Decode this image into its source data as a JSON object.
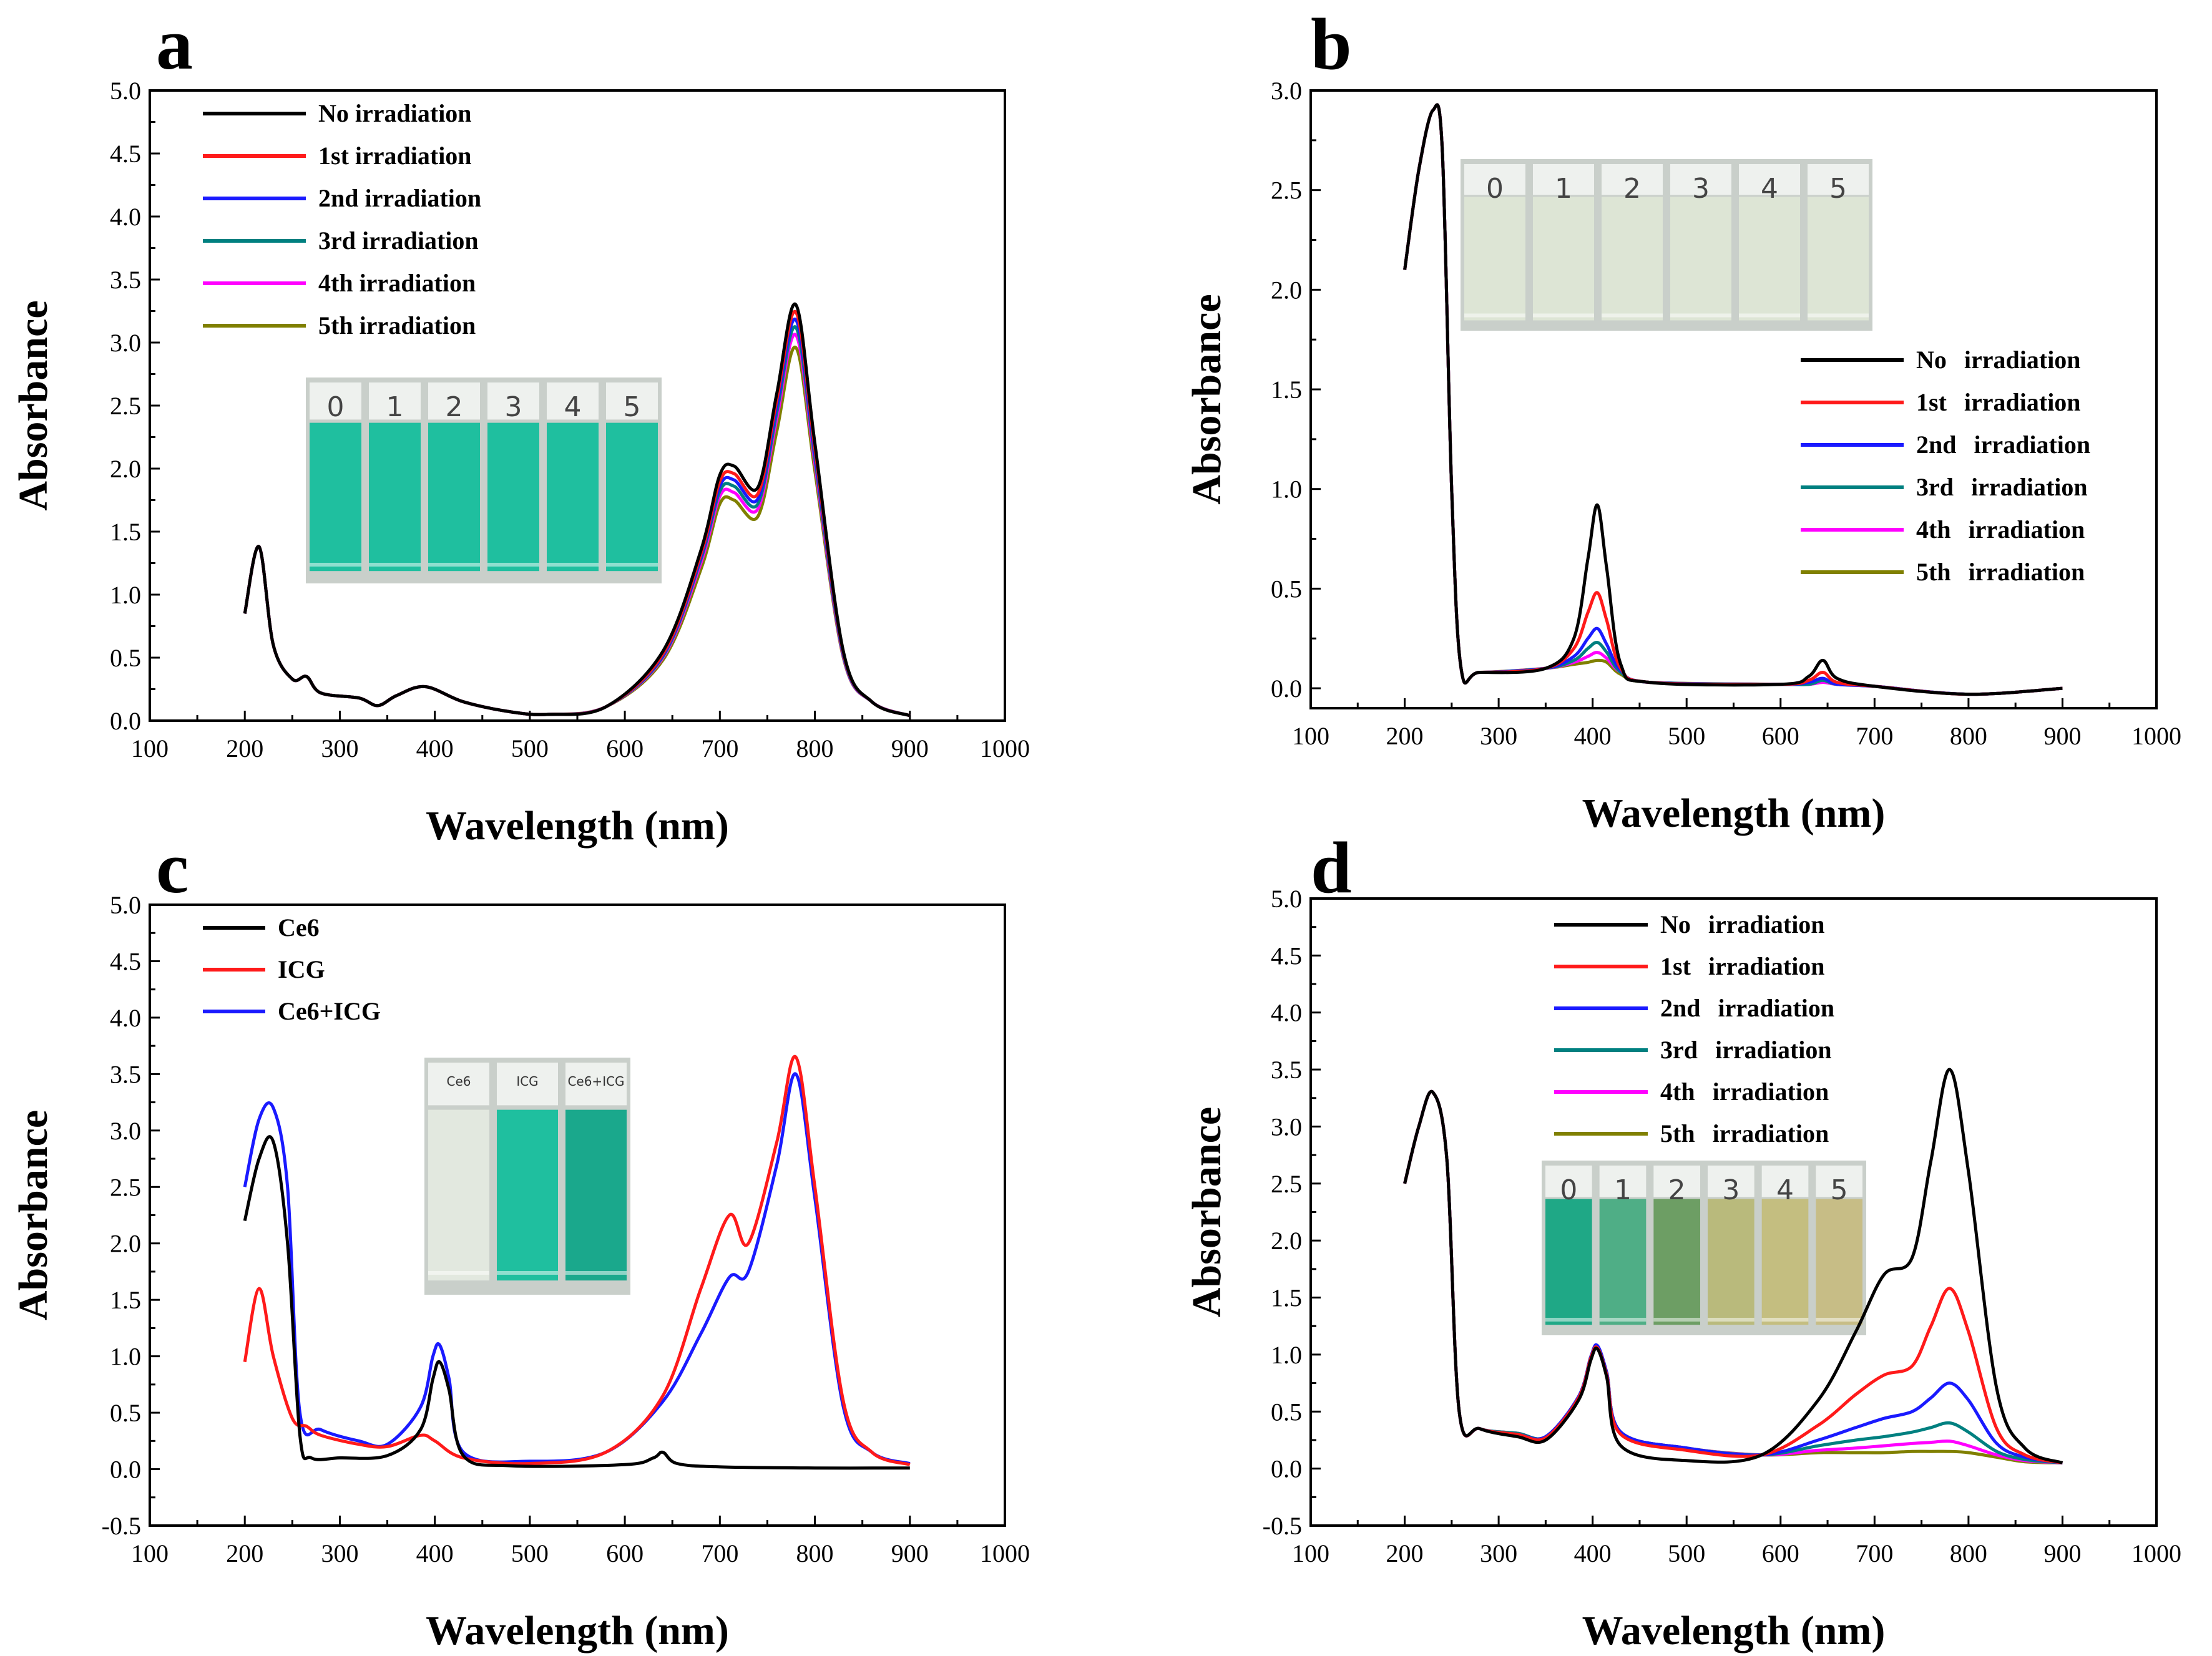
{
  "colors": {
    "black": "#000000",
    "red": "#ff1a1a",
    "blue": "#1a1aff",
    "teal": "#008080",
    "magenta": "#ff00ff",
    "olive": "#808000"
  },
  "chart_data": [
    {
      "type": "line",
      "panel": "a",
      "xlabel": "Wavelength (nm)",
      "ylabel": "Absorbance",
      "xlim": [
        100,
        1000
      ],
      "ylim": [
        0.0,
        5.0
      ],
      "xticks": [
        "100",
        "200",
        "300",
        "400",
        "500",
        "600",
        "700",
        "800",
        "900",
        "1000"
      ],
      "yticks": [
        "0.0",
        "0.5",
        "1.0",
        "1.5",
        "2.0",
        "2.5",
        "3.0",
        "3.5",
        "4.0",
        "4.5",
        "5.0"
      ],
      "legend_position": "top-left",
      "x": [
        200,
        215,
        230,
        250,
        265,
        280,
        320,
        340,
        360,
        390,
        430,
        480,
        520,
        580,
        640,
        680,
        700,
        715,
        740,
        760,
        780,
        800,
        830,
        860,
        900
      ],
      "series": [
        {
          "name": "No irradiation",
          "color": "#000000",
          "values": [
            0.85,
            1.38,
            0.6,
            0.33,
            0.35,
            0.22,
            0.18,
            0.12,
            0.2,
            0.27,
            0.15,
            0.07,
            0.05,
            0.11,
            0.55,
            1.35,
            1.95,
            2.02,
            1.85,
            2.6,
            3.3,
            2.2,
            0.55,
            0.15,
            0.04
          ]
        },
        {
          "name": "1st irradiation",
          "color": "#ff1a1a",
          "values": [
            0.85,
            1.38,
            0.6,
            0.33,
            0.35,
            0.22,
            0.18,
            0.12,
            0.2,
            0.27,
            0.15,
            0.07,
            0.05,
            0.11,
            0.53,
            1.32,
            1.9,
            1.96,
            1.8,
            2.55,
            3.24,
            2.16,
            0.54,
            0.15,
            0.04
          ]
        },
        {
          "name": "2nd irradiation",
          "color": "#1a1aff",
          "values": [
            0.85,
            1.38,
            0.6,
            0.33,
            0.35,
            0.22,
            0.18,
            0.12,
            0.2,
            0.27,
            0.15,
            0.07,
            0.05,
            0.11,
            0.52,
            1.3,
            1.86,
            1.91,
            1.76,
            2.5,
            3.18,
            2.12,
            0.53,
            0.15,
            0.04
          ]
        },
        {
          "name": "3rd irradiation",
          "color": "#008080",
          "values": [
            0.85,
            1.38,
            0.6,
            0.33,
            0.35,
            0.22,
            0.18,
            0.12,
            0.2,
            0.27,
            0.15,
            0.07,
            0.05,
            0.11,
            0.51,
            1.28,
            1.82,
            1.86,
            1.72,
            2.45,
            3.12,
            2.08,
            0.52,
            0.15,
            0.04
          ]
        },
        {
          "name": "4th irradiation",
          "color": "#ff00ff",
          "values": [
            0.85,
            1.38,
            0.6,
            0.33,
            0.35,
            0.22,
            0.18,
            0.12,
            0.2,
            0.27,
            0.15,
            0.07,
            0.05,
            0.11,
            0.5,
            1.25,
            1.78,
            1.81,
            1.68,
            2.4,
            3.06,
            2.04,
            0.51,
            0.15,
            0.04
          ]
        },
        {
          "name": "5th irradiation",
          "color": "#808000",
          "values": [
            0.85,
            1.38,
            0.6,
            0.33,
            0.35,
            0.22,
            0.18,
            0.12,
            0.2,
            0.27,
            0.15,
            0.07,
            0.05,
            0.11,
            0.48,
            1.2,
            1.72,
            1.75,
            1.62,
            2.3,
            2.96,
            1.98,
            0.5,
            0.15,
            0.04
          ]
        }
      ],
      "inset": {
        "labels": [
          "0",
          "1",
          "2",
          "3",
          "4",
          "5"
        ],
        "liquid_colors": [
          "#1fbf9f",
          "#1fbf9f",
          "#1fbf9f",
          "#1fbf9f",
          "#1fbf9f",
          "#1fbf9f"
        ]
      }
    },
    {
      "type": "line",
      "panel": "b",
      "xlabel": "Wavelength (nm)",
      "ylabel": "Absorbance",
      "xlim": [
        100,
        1000
      ],
      "ylim": [
        -0.1,
        3.0
      ],
      "xticks": [
        "100",
        "200",
        "300",
        "400",
        "500",
        "600",
        "700",
        "800",
        "900",
        "1000"
      ],
      "yticks": [
        "0.0",
        "0.5",
        "1.0",
        "1.5",
        "2.0",
        "2.5",
        "3.0"
      ],
      "legend_position": "right",
      "x": [
        200,
        215,
        230,
        240,
        250,
        260,
        280,
        350,
        380,
        395,
        405,
        415,
        430,
        460,
        600,
        630,
        645,
        660,
        700,
        800,
        900
      ],
      "series": [
        {
          "name": "No irradiation",
          "color": "#000000",
          "values": [
            2.1,
            2.6,
            2.9,
            2.7,
            1.0,
            0.1,
            0.08,
            0.1,
            0.25,
            0.65,
            0.92,
            0.6,
            0.12,
            0.03,
            0.02,
            0.06,
            0.14,
            0.05,
            0.01,
            -0.03,
            0.0
          ]
        },
        {
          "name": "1st irradiation",
          "color": "#ff1a1a",
          "values": [
            2.1,
            2.6,
            2.9,
            2.7,
            1.0,
            0.1,
            0.08,
            0.1,
            0.2,
            0.38,
            0.48,
            0.34,
            0.1,
            0.03,
            0.02,
            0.04,
            0.08,
            0.03,
            0.01,
            -0.03,
            0.0
          ]
        },
        {
          "name": "2nd irradiation",
          "color": "#1a1aff",
          "values": [
            2.1,
            2.6,
            2.9,
            2.7,
            1.0,
            0.1,
            0.08,
            0.1,
            0.16,
            0.25,
            0.3,
            0.22,
            0.09,
            0.03,
            0.02,
            0.03,
            0.05,
            0.02,
            0.01,
            -0.03,
            0.0
          ]
        },
        {
          "name": "3rd irradiation",
          "color": "#008080",
          "values": [
            2.1,
            2.6,
            2.9,
            2.7,
            1.0,
            0.1,
            0.08,
            0.1,
            0.14,
            0.2,
            0.23,
            0.18,
            0.08,
            0.03,
            0.02,
            0.02,
            0.04,
            0.02,
            0.01,
            -0.03,
            0.0
          ]
        },
        {
          "name": "4th irradiation",
          "color": "#ff00ff",
          "values": [
            2.1,
            2.6,
            2.9,
            2.7,
            1.0,
            0.1,
            0.08,
            0.1,
            0.13,
            0.16,
            0.18,
            0.15,
            0.08,
            0.03,
            0.02,
            0.02,
            0.03,
            0.02,
            0.01,
            -0.03,
            0.0
          ]
        },
        {
          "name": "5th irradiation",
          "color": "#808000",
          "values": [
            2.1,
            2.6,
            2.9,
            2.7,
            1.0,
            0.1,
            0.08,
            0.1,
            0.12,
            0.13,
            0.14,
            0.13,
            0.07,
            0.03,
            0.02,
            0.02,
            0.03,
            0.02,
            0.01,
            -0.03,
            0.0
          ]
        }
      ],
      "inset": {
        "labels": [
          "0",
          "1",
          "2",
          "3",
          "4",
          "5"
        ],
        "liquid_colors": [
          "#dde5d5",
          "#dde5d5",
          "#dde5d5",
          "#dde5d5",
          "#dde5d5",
          "#dde5d5"
        ]
      }
    },
    {
      "type": "line",
      "panel": "c",
      "xlabel": "Wavelength (nm)",
      "ylabel": "Absorbance",
      "xlim": [
        100,
        1000
      ],
      "ylim": [
        -0.5,
        5.0
      ],
      "xticks": [
        "100",
        "200",
        "300",
        "400",
        "500",
        "600",
        "700",
        "800",
        "900",
        "1000"
      ],
      "yticks": [
        "-0.5",
        "0.0",
        "0.5",
        "1.0",
        "1.5",
        "2.0",
        "2.5",
        "3.0",
        "3.5",
        "4.0",
        "4.5",
        "5.0"
      ],
      "legend_position": "top-left",
      "series": [
        {
          "name": "Ce6",
          "color": "#000000",
          "x": [
            200,
            215,
            230,
            245,
            258,
            270,
            300,
            350,
            385,
            398,
            405,
            415,
            430,
            480,
            600,
            630,
            640,
            655,
            700,
            800,
            900
          ],
          "values": [
            2.2,
            2.75,
            2.9,
            2.0,
            0.3,
            0.1,
            0.1,
            0.12,
            0.35,
            0.8,
            0.95,
            0.7,
            0.12,
            0.03,
            0.04,
            0.1,
            0.15,
            0.05,
            0.02,
            0.01,
            0.01
          ]
        },
        {
          "name": "ICG",
          "color": "#ff1a1a",
          "x": [
            200,
            215,
            230,
            250,
            265,
            280,
            320,
            350,
            385,
            400,
            430,
            500,
            580,
            640,
            680,
            710,
            730,
            760,
            780,
            800,
            830,
            860,
            900
          ],
          "values": [
            0.95,
            1.6,
            1.0,
            0.45,
            0.38,
            0.3,
            0.22,
            0.2,
            0.3,
            0.25,
            0.1,
            0.05,
            0.15,
            0.65,
            1.6,
            2.25,
            2.0,
            2.9,
            3.65,
            2.5,
            0.6,
            0.15,
            0.04
          ]
        },
        {
          "name": "Ce6+ICG",
          "color": "#1a1aff",
          "x": [
            200,
            215,
            230,
            245,
            258,
            280,
            320,
            350,
            385,
            398,
            405,
            415,
            430,
            500,
            580,
            640,
            680,
            710,
            730,
            760,
            780,
            800,
            830,
            860,
            900
          ],
          "values": [
            2.5,
            3.1,
            3.2,
            2.5,
            0.5,
            0.35,
            0.25,
            0.22,
            0.55,
            1.0,
            1.1,
            0.8,
            0.15,
            0.07,
            0.15,
            0.6,
            1.2,
            1.7,
            1.75,
            2.7,
            3.5,
            2.4,
            0.55,
            0.15,
            0.05
          ]
        }
      ],
      "inset": {
        "labels": [
          "Ce6",
          "ICG",
          "Ce6+ICG"
        ],
        "liquid_colors": [
          "#e2e8df",
          "#1fbf9f",
          "#1aa88c"
        ]
      }
    },
    {
      "type": "line",
      "panel": "d",
      "xlabel": "Wavelength (nm)",
      "ylabel": "Absorbance",
      "xlim": [
        100,
        1000
      ],
      "ylim": [
        -0.5,
        5.0
      ],
      "xticks": [
        "100",
        "200",
        "300",
        "400",
        "500",
        "600",
        "700",
        "800",
        "900",
        "1000"
      ],
      "yticks": [
        "-0.5",
        "0.0",
        "0.5",
        "1.0",
        "1.5",
        "2.0",
        "2.5",
        "3.0",
        "3.5",
        "4.0",
        "4.5",
        "5.0"
      ],
      "legend_position": "top",
      "x": [
        200,
        215,
        230,
        245,
        258,
        280,
        320,
        350,
        385,
        398,
        405,
        415,
        430,
        500,
        580,
        640,
        680,
        710,
        740,
        760,
        780,
        800,
        830,
        860,
        900
      ],
      "series": [
        {
          "name": "No irradiation",
          "color": "#000000",
          "values": [
            2.5,
            3.0,
            3.3,
            2.7,
            0.5,
            0.35,
            0.28,
            0.25,
            0.6,
            0.95,
            1.05,
            0.8,
            0.2,
            0.07,
            0.12,
            0.6,
            1.2,
            1.7,
            1.85,
            2.7,
            3.5,
            2.6,
            0.7,
            0.18,
            0.05
          ]
        },
        {
          "name": "1st irradiation",
          "color": "#ff1a1a",
          "values": [
            2.5,
            3.0,
            3.3,
            2.7,
            0.5,
            0.35,
            0.3,
            0.27,
            0.62,
            0.97,
            1.06,
            0.82,
            0.3,
            0.16,
            0.12,
            0.38,
            0.65,
            0.82,
            0.9,
            1.25,
            1.58,
            1.2,
            0.35,
            0.12,
            0.05
          ]
        },
        {
          "name": "2nd irradiation",
          "color": "#1a1aff",
          "values": [
            2.5,
            3.0,
            3.3,
            2.7,
            0.5,
            0.35,
            0.3,
            0.28,
            0.63,
            0.98,
            1.08,
            0.84,
            0.32,
            0.18,
            0.12,
            0.25,
            0.36,
            0.44,
            0.5,
            0.62,
            0.75,
            0.6,
            0.22,
            0.1,
            0.05
          ]
        },
        {
          "name": "3rd irradiation",
          "color": "#008080",
          "values": [
            2.5,
            3.0,
            3.3,
            2.7,
            0.5,
            0.35,
            0.31,
            0.28,
            0.63,
            0.98,
            1.07,
            0.84,
            0.32,
            0.18,
            0.12,
            0.2,
            0.25,
            0.28,
            0.32,
            0.36,
            0.4,
            0.32,
            0.15,
            0.08,
            0.05
          ]
        },
        {
          "name": "4th irradiation",
          "color": "#ff00ff",
          "values": [
            2.5,
            3.0,
            3.3,
            2.7,
            0.5,
            0.35,
            0.31,
            0.28,
            0.63,
            0.98,
            1.07,
            0.84,
            0.32,
            0.18,
            0.12,
            0.16,
            0.18,
            0.2,
            0.22,
            0.23,
            0.24,
            0.2,
            0.12,
            0.07,
            0.05
          ]
        },
        {
          "name": "5th irradiation",
          "color": "#808000",
          "values": [
            2.5,
            3.0,
            3.3,
            2.7,
            0.5,
            0.35,
            0.31,
            0.28,
            0.63,
            0.98,
            1.07,
            0.84,
            0.32,
            0.18,
            0.12,
            0.14,
            0.14,
            0.14,
            0.15,
            0.15,
            0.15,
            0.14,
            0.1,
            0.06,
            0.05
          ]
        }
      ],
      "inset": {
        "labels": [
          "0",
          "1",
          "2",
          "3",
          "4",
          "5"
        ],
        "liquid_colors": [
          "#1fa886",
          "#4fae86",
          "#6d9e64",
          "#b9ba7c",
          "#c4be80",
          "#c7bd86"
        ]
      }
    }
  ]
}
